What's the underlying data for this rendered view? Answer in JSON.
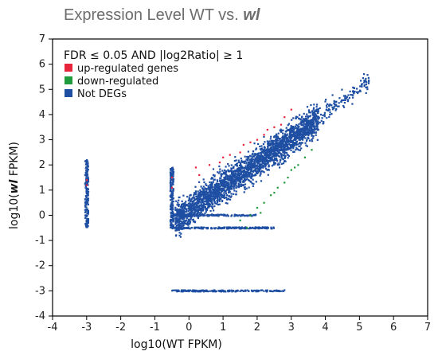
{
  "chart_data": {
    "type": "scatter",
    "title_prefix": "Expression Level WT vs. ",
    "title_emph": "wl",
    "xlabel": "log10(WT FPKM)",
    "ylabel_prefix": "log10(",
    "ylabel_emph": "wl",
    "ylabel_suffix": " FPKM)",
    "xlim": [
      -4,
      7
    ],
    "ylim": [
      -4,
      7
    ],
    "xticks": [
      -4,
      -3,
      -2,
      -1,
      0,
      1,
      2,
      3,
      4,
      5,
      6,
      7
    ],
    "yticks": [
      -4,
      -3,
      -2,
      -1,
      0,
      1,
      2,
      3,
      4,
      5,
      6,
      7
    ],
    "legend": {
      "title": "FDR ≤ 0.05 AND |log2Ratio| ≥ 1",
      "position": "top-left",
      "entries": [
        {
          "label": "up-regulated genes",
          "color": "#e8233c"
        },
        {
          "label": "down-regulated",
          "color": "#1f9a3c"
        },
        {
          "label": "Not DEGs",
          "color": "#1f4fa3"
        }
      ]
    },
    "series": [
      {
        "name": "up-regulated genes",
        "color": "#e8233c",
        "points": [
          [
            -3.0,
            1.4
          ],
          [
            -3.0,
            1.2
          ],
          [
            -0.5,
            1.5
          ],
          [
            -0.5,
            1.1
          ],
          [
            0.6,
            2.0
          ],
          [
            0.9,
            2.1
          ],
          [
            1.2,
            2.4
          ],
          [
            1.5,
            2.5
          ],
          [
            1.8,
            2.9
          ],
          [
            2.0,
            3.0
          ],
          [
            2.3,
            3.4
          ],
          [
            2.5,
            3.5
          ],
          [
            2.7,
            3.6
          ],
          [
            3.0,
            4.2
          ],
          [
            0.3,
            1.6
          ],
          [
            1.0,
            2.3
          ],
          [
            1.6,
            2.8
          ],
          [
            2.2,
            3.2
          ],
          [
            0.2,
            1.9
          ],
          [
            2.8,
            3.9
          ]
        ]
      },
      {
        "name": "down-regulated",
        "color": "#1f9a3c",
        "points": [
          [
            1.5,
            -0.2
          ],
          [
            1.8,
            0.0
          ],
          [
            2.0,
            0.3
          ],
          [
            2.2,
            0.5
          ],
          [
            2.4,
            0.8
          ],
          [
            2.6,
            1.1
          ],
          [
            2.8,
            1.3
          ],
          [
            3.0,
            1.8
          ],
          [
            3.2,
            2.0
          ],
          [
            3.4,
            2.3
          ],
          [
            3.6,
            2.6
          ],
          [
            1.7,
            -0.5
          ],
          [
            2.1,
            0.1
          ],
          [
            2.5,
            0.9
          ],
          [
            2.9,
            1.5
          ],
          [
            3.1,
            1.9
          ]
        ]
      },
      {
        "name": "Not DEGs",
        "color": "#1f4fa3",
        "clouds": [
          {
            "x": [
              -0.4,
              3.8
            ],
            "y_center_intercept": 0.2,
            "slope": 0.95,
            "spread": 0.6,
            "count": 2600
          },
          {
            "x": [
              -3.05,
              -2.95
            ],
            "y_range": [
              -0.5,
              2.2
            ],
            "count": 160
          },
          {
            "x": [
              -0.55,
              -0.45
            ],
            "y_range": [
              -0.5,
              1.9
            ],
            "count": 180
          },
          {
            "x": [
              -0.5,
              2.8
            ],
            "y_fixed": -3.0,
            "count": 170
          },
          {
            "x": [
              -0.5,
              2.5
            ],
            "y_fixed": -0.5,
            "count": 200
          },
          {
            "x": [
              -0.5,
              2.0
            ],
            "y_fixed": 0.0,
            "count": 140
          },
          {
            "x": [
              3.6,
              5.3
            ],
            "y_center_intercept": 0.3,
            "slope": 0.95,
            "spread": 0.35,
            "count": 140
          }
        ]
      }
    ]
  }
}
